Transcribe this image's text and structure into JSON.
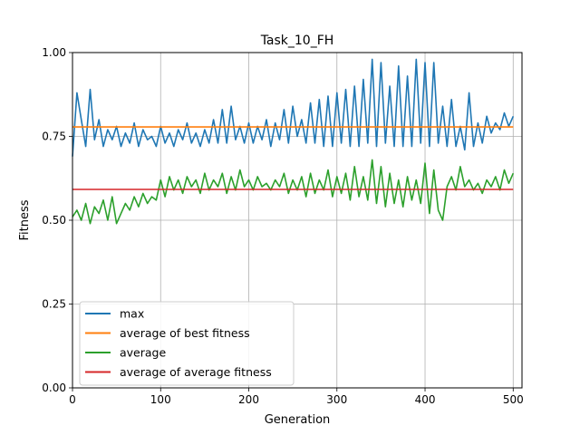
{
  "chart_data": {
    "type": "line",
    "title": "Task_10_FH",
    "xlabel": "Generation",
    "ylabel": "Fitness",
    "xlim": [
      0,
      510
    ],
    "ylim": [
      0.0,
      1.0
    ],
    "grid": true,
    "legend_position": "lower-left",
    "x_ticks": [
      0,
      100,
      200,
      300,
      400,
      500
    ],
    "x_tick_labels": [
      "0",
      "100",
      "200",
      "300",
      "400",
      "500"
    ],
    "y_ticks": [
      0.0,
      0.25,
      0.5,
      0.75,
      1.0
    ],
    "y_tick_labels": [
      "0.00",
      "0.25",
      "0.50",
      "0.75",
      "1.00"
    ],
    "series": [
      {
        "name": "max",
        "color": "#1f77b4",
        "x": [
          0,
          5,
          10,
          15,
          20,
          25,
          30,
          35,
          40,
          45,
          50,
          55,
          60,
          65,
          70,
          75,
          80,
          85,
          90,
          95,
          100,
          105,
          110,
          115,
          120,
          125,
          130,
          135,
          140,
          145,
          150,
          155,
          160,
          165,
          170,
          175,
          180,
          185,
          190,
          195,
          200,
          205,
          210,
          215,
          220,
          225,
          230,
          235,
          240,
          245,
          250,
          255,
          260,
          265,
          270,
          275,
          280,
          285,
          290,
          295,
          300,
          305,
          310,
          315,
          320,
          325,
          330,
          335,
          340,
          345,
          350,
          355,
          360,
          365,
          370,
          375,
          380,
          385,
          390,
          395,
          400,
          405,
          410,
          415,
          420,
          425,
          430,
          435,
          440,
          445,
          450,
          455,
          460,
          465,
          470,
          475,
          480,
          485,
          490,
          495,
          500
        ],
        "y": [
          0.69,
          0.88,
          0.8,
          0.72,
          0.89,
          0.74,
          0.8,
          0.72,
          0.77,
          0.74,
          0.78,
          0.72,
          0.76,
          0.73,
          0.79,
          0.72,
          0.77,
          0.74,
          0.75,
          0.72,
          0.78,
          0.73,
          0.76,
          0.72,
          0.77,
          0.74,
          0.79,
          0.73,
          0.76,
          0.72,
          0.77,
          0.73,
          0.8,
          0.73,
          0.83,
          0.73,
          0.84,
          0.74,
          0.78,
          0.73,
          0.79,
          0.73,
          0.78,
          0.74,
          0.8,
          0.72,
          0.79,
          0.74,
          0.83,
          0.73,
          0.84,
          0.75,
          0.8,
          0.73,
          0.85,
          0.73,
          0.86,
          0.72,
          0.87,
          0.72,
          0.88,
          0.73,
          0.89,
          0.72,
          0.9,
          0.72,
          0.92,
          0.73,
          0.98,
          0.72,
          0.97,
          0.73,
          0.9,
          0.72,
          0.96,
          0.72,
          0.93,
          0.72,
          0.98,
          0.73,
          0.97,
          0.72,
          0.97,
          0.73,
          0.84,
          0.72,
          0.86,
          0.72,
          0.78,
          0.71,
          0.88,
          0.72,
          0.79,
          0.73,
          0.81,
          0.76,
          0.79,
          0.77,
          0.82,
          0.78,
          0.81
        ]
      },
      {
        "name": "average of best fitness",
        "color": "#ff7f0e",
        "x": [
          0,
          500
        ],
        "y": [
          0.778,
          0.778
        ]
      },
      {
        "name": "average",
        "color": "#2ca02c",
        "x": [
          0,
          5,
          10,
          15,
          20,
          25,
          30,
          35,
          40,
          45,
          50,
          55,
          60,
          65,
          70,
          75,
          80,
          85,
          90,
          95,
          100,
          105,
          110,
          115,
          120,
          125,
          130,
          135,
          140,
          145,
          150,
          155,
          160,
          165,
          170,
          175,
          180,
          185,
          190,
          195,
          200,
          205,
          210,
          215,
          220,
          225,
          230,
          235,
          240,
          245,
          250,
          255,
          260,
          265,
          270,
          275,
          280,
          285,
          290,
          295,
          300,
          305,
          310,
          315,
          320,
          325,
          330,
          335,
          340,
          345,
          350,
          355,
          360,
          365,
          370,
          375,
          380,
          385,
          390,
          395,
          400,
          405,
          410,
          415,
          420,
          425,
          430,
          435,
          440,
          445,
          450,
          455,
          460,
          465,
          470,
          475,
          480,
          485,
          490,
          495,
          500
        ],
        "y": [
          0.51,
          0.53,
          0.5,
          0.55,
          0.49,
          0.54,
          0.52,
          0.56,
          0.5,
          0.57,
          0.49,
          0.52,
          0.55,
          0.53,
          0.57,
          0.54,
          0.58,
          0.55,
          0.57,
          0.56,
          0.62,
          0.57,
          0.63,
          0.59,
          0.62,
          0.58,
          0.63,
          0.6,
          0.62,
          0.58,
          0.64,
          0.59,
          0.62,
          0.6,
          0.64,
          0.58,
          0.63,
          0.59,
          0.65,
          0.6,
          0.62,
          0.59,
          0.63,
          0.6,
          0.61,
          0.59,
          0.62,
          0.6,
          0.64,
          0.58,
          0.62,
          0.59,
          0.63,
          0.57,
          0.64,
          0.58,
          0.62,
          0.59,
          0.65,
          0.57,
          0.63,
          0.58,
          0.64,
          0.56,
          0.66,
          0.57,
          0.63,
          0.56,
          0.68,
          0.55,
          0.66,
          0.54,
          0.64,
          0.55,
          0.62,
          0.54,
          0.63,
          0.56,
          0.62,
          0.55,
          0.67,
          0.52,
          0.65,
          0.53,
          0.5,
          0.6,
          0.63,
          0.59,
          0.66,
          0.6,
          0.62,
          0.59,
          0.61,
          0.58,
          0.62,
          0.6,
          0.63,
          0.59,
          0.65,
          0.61,
          0.64
        ]
      },
      {
        "name": "average of average fitness",
        "color": "#d62728",
        "x": [
          0,
          500
        ],
        "y": [
          0.592,
          0.592
        ]
      }
    ]
  }
}
